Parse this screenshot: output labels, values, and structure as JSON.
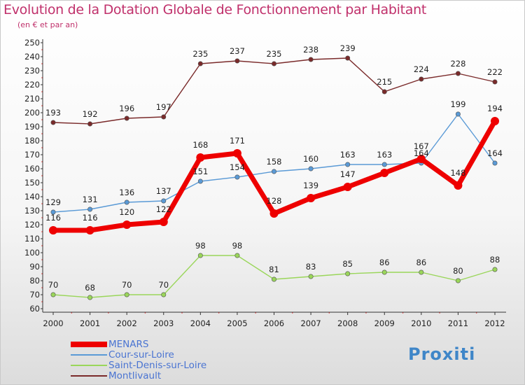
{
  "title": "Evolution de la Dotation Globale de Fonctionnement par Habitant",
  "subtitle": "(en € et par an)",
  "logo": "Proxiti",
  "chart_data": {
    "type": "line",
    "title": "Evolution de la Dotation Globale de Fonctionnement par Habitant",
    "subtitle": "(en € et par an)",
    "xlabel": "",
    "ylabel": "",
    "categories": [
      "2000",
      "2001",
      "2002",
      "2003",
      "2004",
      "2005",
      "2006",
      "2007",
      "2008",
      "2009",
      "2010",
      "2011",
      "2012"
    ],
    "ylim": [
      60,
      250
    ],
    "ytick_step": 10,
    "grid": false,
    "legend_position": "bottom-left",
    "series": [
      {
        "name": "Montlivault",
        "color": "#7a2a2a",
        "values": [
          193,
          192,
          196,
          197,
          235,
          237,
          235,
          238,
          239,
          215,
          224,
          228,
          222
        ]
      },
      {
        "name": "Cour-sur-Loire",
        "color": "#5a9ad6",
        "values": [
          129,
          131,
          136,
          137,
          151,
          154,
          158,
          160,
          163,
          163,
          164,
          199,
          164
        ]
      },
      {
        "name": "Saint-Denis-sur-Loire",
        "color": "#9ad65a",
        "values": [
          70,
          68,
          70,
          70,
          98,
          98,
          81,
          83,
          85,
          86,
          86,
          80,
          88
        ]
      },
      {
        "name": "MENARS",
        "color": "#ee0000",
        "values": [
          116,
          116,
          120,
          122,
          168,
          171,
          128,
          139,
          147,
          157,
          167,
          148,
          194
        ]
      }
    ],
    "data_labels": [
      {
        "series": "MENARS",
        "labels": [
          "116",
          "116",
          "120",
          "122",
          "168",
          "171",
          "128",
          "139",
          "147",
          "",
          "167",
          "148",
          "194"
        ]
      },
      {
        "series": "Cour-sur-Loire",
        "labels": [
          "129",
          "131",
          "136",
          "137",
          "151",
          "154",
          "158",
          "160",
          "163",
          "163",
          "164",
          "199",
          "164"
        ]
      },
      {
        "series": "Saint-Denis-sur-Loire",
        "labels": [
          "70",
          "68",
          "70",
          "70",
          "98",
          "98",
          "81",
          "83",
          "85",
          "86",
          "86",
          "80",
          "88"
        ]
      },
      {
        "series": "Montlivault",
        "labels": [
          "193",
          "192",
          "196",
          "197",
          "235",
          "237",
          "235",
          "238",
          "239",
          "215",
          "224",
          "228",
          "222"
        ]
      }
    ],
    "legend": [
      "MENARS",
      "Cour-sur-Loire",
      "Saint-Denis-sur-Loire",
      "Montlivault"
    ]
  }
}
